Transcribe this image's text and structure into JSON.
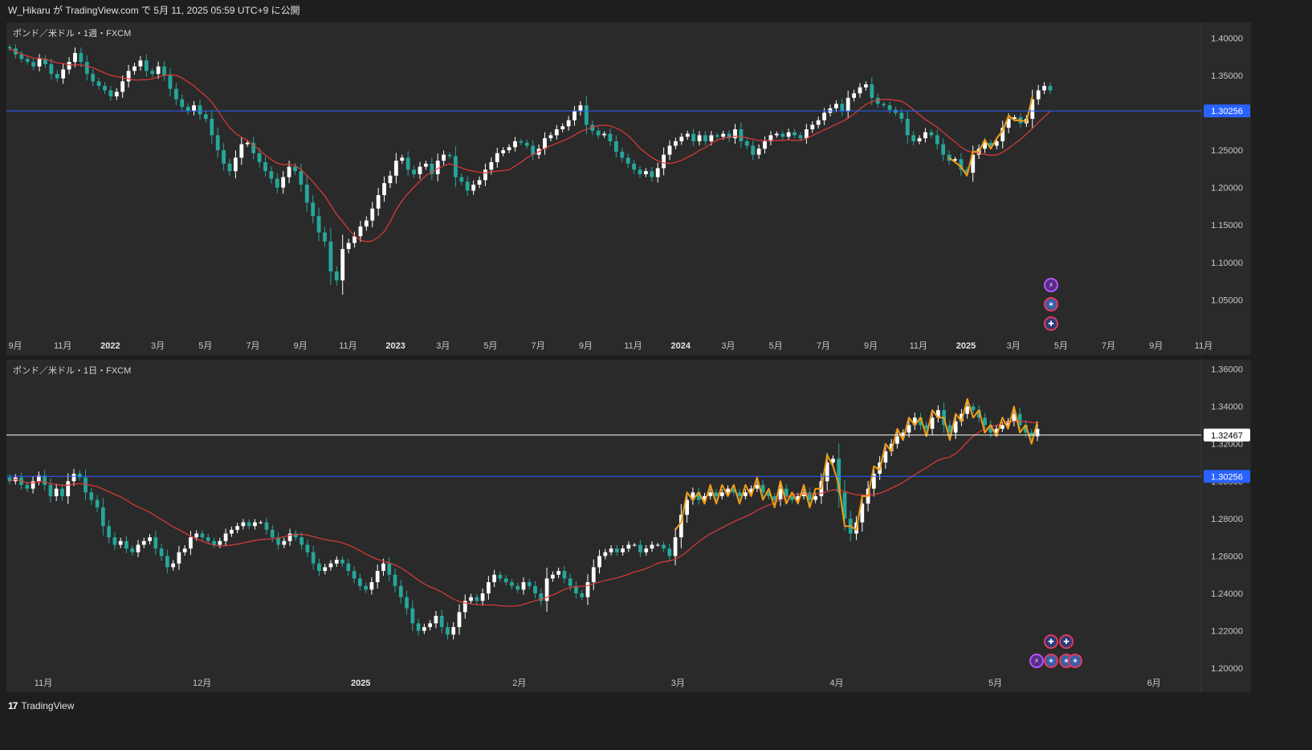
{
  "header": {
    "publish_text": "W_Hikaru が TradingView.com で 5月 11, 2025 05:59 UTC+9 に公開"
  },
  "footer": {
    "brand_logo": "17",
    "brand_name": "TradingView"
  },
  "colors": {
    "up": "#ffffff",
    "down": "#26a69a",
    "ma": "#e03a3a",
    "orange": "#f39c12",
    "blue_line": "#2962ff",
    "price_tag": "#2962ff"
  },
  "chart_data": [
    {
      "type": "candlestick",
      "title": "ポンド／米ドル・1週・FXCM",
      "ylim": [
        1.0,
        1.41
      ],
      "y_ticks": [
        "1.40000",
        "1.35000",
        "1.30000",
        "1.25000",
        "1.20000",
        "1.15000",
        "1.10000",
        "1.05000"
      ],
      "y_tick_values": [
        1.4,
        1.35,
        1.3,
        1.25,
        1.2,
        1.15,
        1.1,
        1.05
      ],
      "hline": {
        "value": 1.30256,
        "label": "1.30256",
        "color": "#2962ff"
      },
      "time_labels": [
        "9月",
        "11月",
        "2022",
        "3月",
        "5月",
        "7月",
        "9月",
        "11月",
        "2023",
        "3月",
        "5月",
        "7月",
        "9月",
        "11月",
        "2024",
        "3月",
        "5月",
        "7月",
        "9月",
        "11月",
        "2025",
        "3月",
        "5月",
        "7月",
        "9月",
        "11月"
      ],
      "time_label_major": [
        false,
        false,
        true,
        false,
        false,
        false,
        false,
        false,
        true,
        false,
        false,
        false,
        false,
        false,
        true,
        false,
        false,
        false,
        false,
        false,
        true,
        false,
        false,
        false,
        false,
        false
      ],
      "closes": [
        1.386,
        1.378,
        1.372,
        1.368,
        1.362,
        1.372,
        1.365,
        1.352,
        1.346,
        1.358,
        1.368,
        1.38,
        1.368,
        1.352,
        1.342,
        1.336,
        1.33,
        1.322,
        1.328,
        1.342,
        1.356,
        1.362,
        1.37,
        1.356,
        1.352,
        1.362,
        1.35,
        1.332,
        1.318,
        1.308,
        1.302,
        1.31,
        1.298,
        1.292,
        1.27,
        1.25,
        1.232,
        1.222,
        1.24,
        1.258,
        1.26,
        1.246,
        1.234,
        1.222,
        1.212,
        1.2,
        1.214,
        1.228,
        1.222,
        1.204,
        1.18,
        1.162,
        1.14,
        1.128,
        1.088,
        1.076,
        1.118,
        1.126,
        1.135,
        1.148,
        1.156,
        1.172,
        1.19,
        1.206,
        1.216,
        1.236,
        1.24,
        1.224,
        1.218,
        1.228,
        1.232,
        1.218,
        1.236,
        1.244,
        1.242,
        1.214,
        1.208,
        1.196,
        1.204,
        1.21,
        1.224,
        1.234,
        1.246,
        1.25,
        1.254,
        1.262,
        1.26,
        1.256,
        1.244,
        1.252,
        1.266,
        1.27,
        1.278,
        1.282,
        1.29,
        1.302,
        1.31,
        1.284,
        1.276,
        1.27,
        1.272,
        1.262,
        1.248,
        1.24,
        1.232,
        1.224,
        1.218,
        1.222,
        1.214,
        1.226,
        1.244,
        1.256,
        1.262,
        1.268,
        1.272,
        1.262,
        1.27,
        1.262,
        1.27,
        1.268,
        1.272,
        1.266,
        1.278,
        1.262,
        1.256,
        1.244,
        1.252,
        1.262,
        1.27,
        1.272,
        1.268,
        1.274,
        1.27,
        1.266,
        1.278,
        1.284,
        1.29,
        1.3,
        1.306,
        1.312,
        1.302,
        1.32,
        1.326,
        1.334,
        1.338,
        1.32,
        1.312,
        1.31,
        1.304,
        1.3,
        1.292,
        1.27,
        1.262,
        1.266,
        1.274,
        1.27,
        1.258,
        1.244,
        1.236,
        1.238,
        1.224,
        1.22,
        1.244,
        1.252,
        1.26,
        1.256,
        1.262,
        1.28,
        1.292,
        1.294,
        1.286,
        1.292,
        1.318,
        1.33,
        1.336,
        1.33
      ]
    },
    {
      "type": "candlestick",
      "title": "ポンド／米ドル・1日・FXCM",
      "ylim": [
        1.1975,
        1.3615
      ],
      "y_ticks": [
        "1.36000",
        "1.34000",
        "1.32000",
        "1.30000",
        "1.28000",
        "1.26000",
        "1.24000",
        "1.22000",
        "1.20000"
      ],
      "y_tick_values": [
        1.36,
        1.34,
        1.32,
        1.3,
        1.28,
        1.26,
        1.24,
        1.22,
        1.2
      ],
      "hline": {
        "value": 1.30256,
        "label": "1.30256",
        "color": "#2962ff"
      },
      "hline2": {
        "value": 1.32467,
        "label": "1.32467",
        "color": "#ffffff"
      },
      "time_labels": [
        "11月",
        "12月",
        "2025",
        "2月",
        "3月",
        "4月",
        "5月",
        "6月"
      ],
      "time_label_major": [
        false,
        false,
        true,
        false,
        false,
        false,
        false,
        false
      ],
      "closes": [
        1.3,
        1.302,
        1.298,
        1.296,
        1.3,
        1.303,
        1.298,
        1.292,
        1.296,
        1.292,
        1.3,
        1.304,
        1.302,
        1.294,
        1.29,
        1.286,
        1.276,
        1.27,
        1.266,
        1.268,
        1.264,
        1.262,
        1.266,
        1.268,
        1.27,
        1.264,
        1.26,
        1.254,
        1.256,
        1.262,
        1.264,
        1.27,
        1.272,
        1.27,
        1.268,
        1.266,
        1.268,
        1.272,
        1.274,
        1.276,
        1.278,
        1.276,
        1.278,
        1.278,
        1.274,
        1.27,
        1.266,
        1.268,
        1.272,
        1.27,
        1.266,
        1.262,
        1.256,
        1.252,
        1.254,
        1.256,
        1.258,
        1.256,
        1.252,
        1.248,
        1.244,
        1.242,
        1.246,
        1.252,
        1.256,
        1.25,
        1.244,
        1.238,
        1.232,
        1.224,
        1.22,
        1.222,
        1.224,
        1.228,
        1.222,
        1.218,
        1.222,
        1.23,
        1.236,
        1.238,
        1.236,
        1.24,
        1.246,
        1.25,
        1.248,
        1.246,
        1.244,
        1.242,
        1.246,
        1.244,
        1.24,
        1.236,
        1.248,
        1.25,
        1.252,
        1.248,
        1.244,
        1.24,
        1.238,
        1.246,
        1.254,
        1.26,
        1.262,
        1.264,
        1.262,
        1.264,
        1.266,
        1.266,
        1.262,
        1.264,
        1.266,
        1.266,
        1.264,
        1.26,
        1.27,
        1.282,
        1.29,
        1.294,
        1.29,
        1.292,
        1.294,
        1.292,
        1.294,
        1.296,
        1.294,
        1.292,
        1.294,
        1.296,
        1.298,
        1.294,
        1.292,
        1.29,
        1.296,
        1.292,
        1.29,
        1.292,
        1.294,
        1.29,
        1.292,
        1.3,
        1.31,
        1.312,
        1.294,
        1.28,
        1.272,
        1.278,
        1.288,
        1.296,
        1.304,
        1.31,
        1.316,
        1.32,
        1.324,
        1.326,
        1.33,
        1.334,
        1.33,
        1.328,
        1.334,
        1.338,
        1.33,
        1.326,
        1.332,
        1.336,
        1.34,
        1.338,
        1.334,
        1.33,
        1.326,
        1.328,
        1.33,
        1.332,
        1.336,
        1.33,
        1.326,
        1.324,
        1.328
      ]
    }
  ],
  "events": {
    "weekly": [
      "flash-icon",
      "us-flag-icon",
      "gb-flag-icon"
    ],
    "daily": [
      "gb-flag-icon",
      "gb-flag-icon",
      "flash-icon",
      "us-flag-icon",
      "us-flag-icon",
      "us-flag-icon"
    ]
  }
}
